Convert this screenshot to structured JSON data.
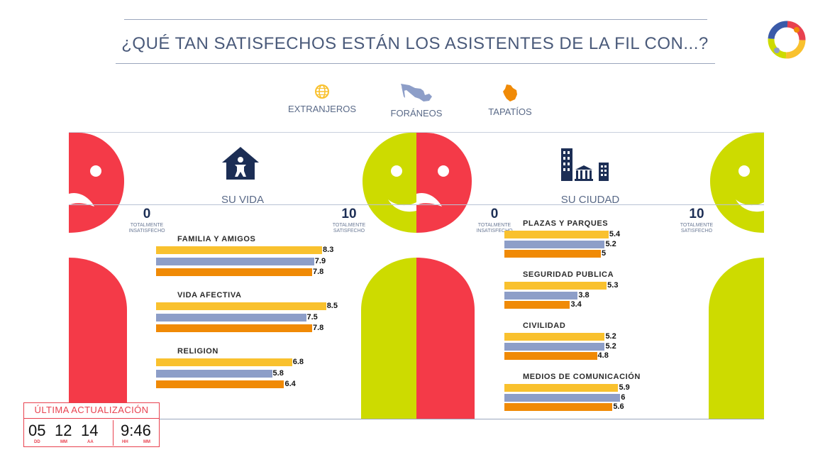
{
  "title": "¿QUÉ TAN SATISFECHOS ESTÁN LOS ASISTENTES DE LA FIL CON...?",
  "colors": {
    "extranjeros": "#f9c12e",
    "foraneos": "#8d9ec8",
    "tapatios": "#f08a06",
    "sad_face": "#f43a48",
    "happy_face": "#cddb00",
    "navy": "#1c2e55"
  },
  "legend": [
    {
      "label": "EXTRANJEROS",
      "icon": "globe-icon"
    },
    {
      "label": "FORÁNEOS",
      "icon": "mexico-map-icon"
    },
    {
      "label": "TAPATÍOS",
      "icon": "jalisco-map-icon"
    }
  ],
  "scale": {
    "min": "0",
    "min_caption_1": "TOTALMENTE",
    "min_caption_2": "INSATISFECHO",
    "max": "10",
    "max_caption_1": "TOTALMENTE",
    "max_caption_2": "SATISFECHO"
  },
  "chart_data": [
    {
      "type": "bar",
      "title": "SU VIDA",
      "icon": "house-person-icon",
      "xlim": [
        0,
        10
      ],
      "categories": [
        "FAMILIA Y AMIGOS",
        "VIDA AFECTIVA",
        "RELIGION"
      ],
      "series": [
        {
          "name": "EXTRANJEROS",
          "values": [
            8.3,
            8.5,
            6.8
          ]
        },
        {
          "name": "FORÁNEOS",
          "values": [
            7.9,
            7.5,
            5.8
          ]
        },
        {
          "name": "TAPATÍOS",
          "values": [
            7.8,
            7.8,
            6.4
          ]
        }
      ]
    },
    {
      "type": "bar",
      "title": "SU CIUDAD",
      "icon": "city-buildings-icon",
      "xlim": [
        0,
        10
      ],
      "categories": [
        "PLAZAS Y PARQUES",
        "SEGURIDAD PUBLICA",
        "CIVILIDAD",
        "MEDIOS DE COMUNICACIÓN"
      ],
      "series": [
        {
          "name": "EXTRANJEROS",
          "values": [
            5.4,
            5.3,
            5.2,
            5.9
          ]
        },
        {
          "name": "FORÁNEOS",
          "values": [
            5.2,
            3.8,
            5.2,
            6
          ]
        },
        {
          "name": "TAPATÍOS",
          "values": [
            5,
            3.4,
            4.8,
            5.6
          ]
        }
      ]
    }
  ],
  "update": {
    "title": "ÚLTIMA ACTUALIZACIÓN",
    "day": "05",
    "month": "12",
    "year": "14",
    "time": "9:46",
    "day_cap": "DD",
    "month_cap": "MM",
    "year_cap": "AA",
    "hour_cap": "HH",
    "minute_cap": "MM"
  }
}
